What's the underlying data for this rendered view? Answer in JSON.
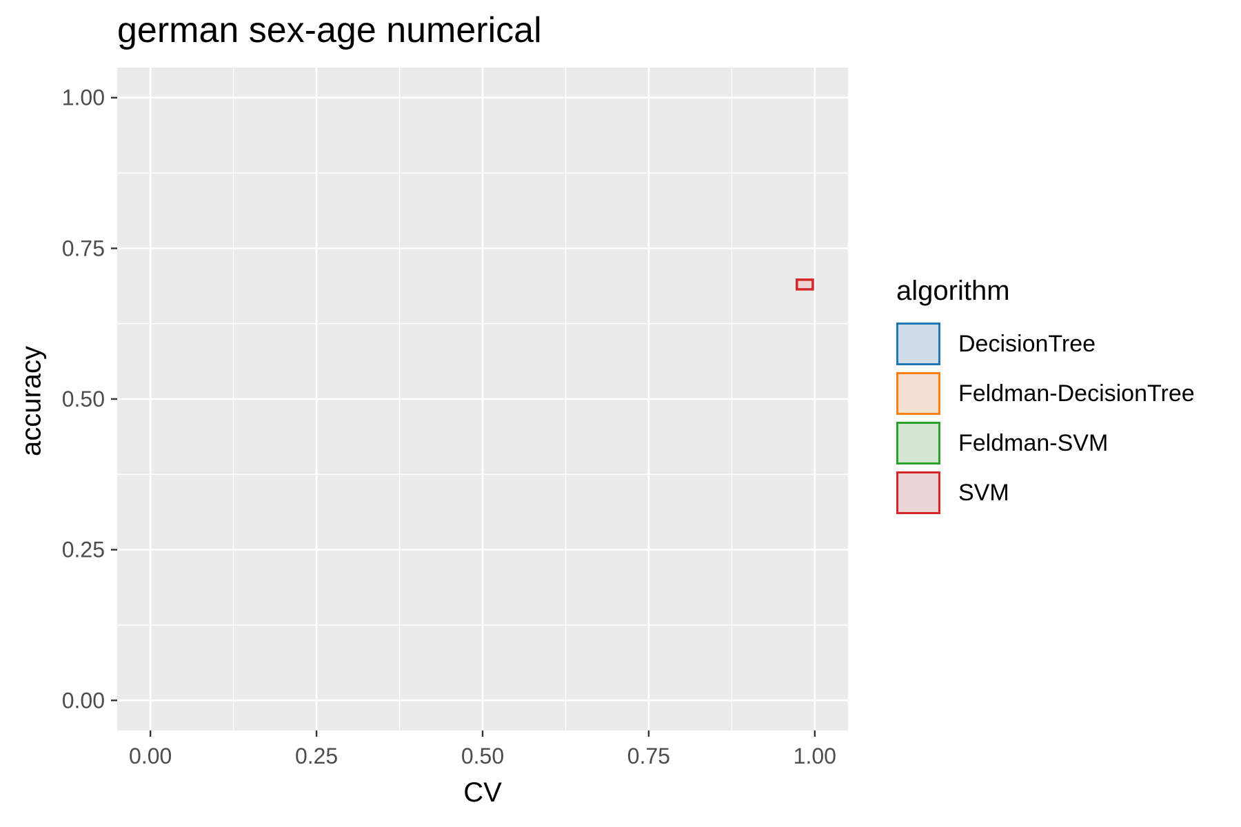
{
  "chart_data": {
    "type": "scatter",
    "title": "german sex-age numerical",
    "xlabel": "CV",
    "ylabel": "accuracy",
    "xlim": [
      -0.05,
      1.05
    ],
    "ylim": [
      -0.05,
      1.05
    ],
    "x_ticks": [
      "0.00",
      "0.25",
      "0.50",
      "0.75",
      "1.00"
    ],
    "y_ticks": [
      "0.00",
      "0.25",
      "0.50",
      "0.75",
      "1.00"
    ],
    "grid": true,
    "legend_title": "algorithm",
    "legend_position": "right",
    "series": [
      {
        "name": "DecisionTree",
        "color": "#1f77b4",
        "fill": "#d1dde6",
        "points": []
      },
      {
        "name": "Feldman-DecisionTree",
        "color": "#ff7f0e",
        "fill": "#f4e1d2",
        "points": []
      },
      {
        "name": "Feldman-SVM",
        "color": "#2ca02c",
        "fill": "#d3e5d3",
        "points": []
      },
      {
        "name": "SVM",
        "color": "#d62728",
        "fill": "#ecd3d5",
        "points": [
          {
            "x": [
              0.973,
              0.997
            ],
            "y": [
              0.682,
              0.698
            ]
          }
        ]
      }
    ]
  }
}
